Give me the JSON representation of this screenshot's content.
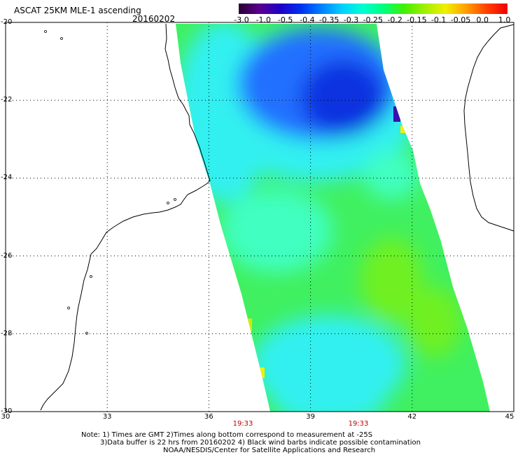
{
  "header": {
    "title": "ASCAT 25KM MLE-1 ascending",
    "date": "20160202"
  },
  "colorbar": {
    "labels": [
      "-3.0",
      "-1.0",
      "-0.5",
      "-0.4",
      "-0.35",
      "-0.3",
      "-0.25",
      "-0.2",
      "-0.15",
      "-0.1",
      "-0.05",
      "0.0",
      "1.0"
    ],
    "colors": [
      "#2a0030",
      "#5a0090",
      "#2000c8",
      "#0030f0",
      "#0080ff",
      "#00d0ff",
      "#00ffd0",
      "#00ff80",
      "#40f000",
      "#a0f000",
      "#f0f000",
      "#ffa000",
      "#ff4000",
      "#f00000"
    ]
  },
  "map": {
    "lat_labels": [
      "-20",
      "-22",
      "-24",
      "-26",
      "-28",
      "-30"
    ],
    "lon_labels": [
      "30",
      "33",
      "36",
      "39",
      "42",
      "45"
    ],
    "lat_range": [
      -30,
      -20
    ],
    "lon_range": [
      30,
      45
    ],
    "time_labels": [
      "19:33",
      "19:33"
    ],
    "time_color": "#c00000",
    "swath_colors": {
      "deep": "#1030e0",
      "blue": "#2070ff",
      "cyan": "#30f0f0",
      "aqua": "#40ffc0",
      "green": "#40f060",
      "lime": "#70f020",
      "yellow": "#f0f000"
    }
  },
  "footer": {
    "note_line1": "Note: 1) Times are GMT 2)Times along bottom correspond to measurement at -25S",
    "note_line2": "3)Data buffer is 22 hrs from 20160202 4) Black wind barbs indicate possible contamination",
    "note_line3": "NOAA/NESDIS/Center for Satellite Applications and Research"
  }
}
